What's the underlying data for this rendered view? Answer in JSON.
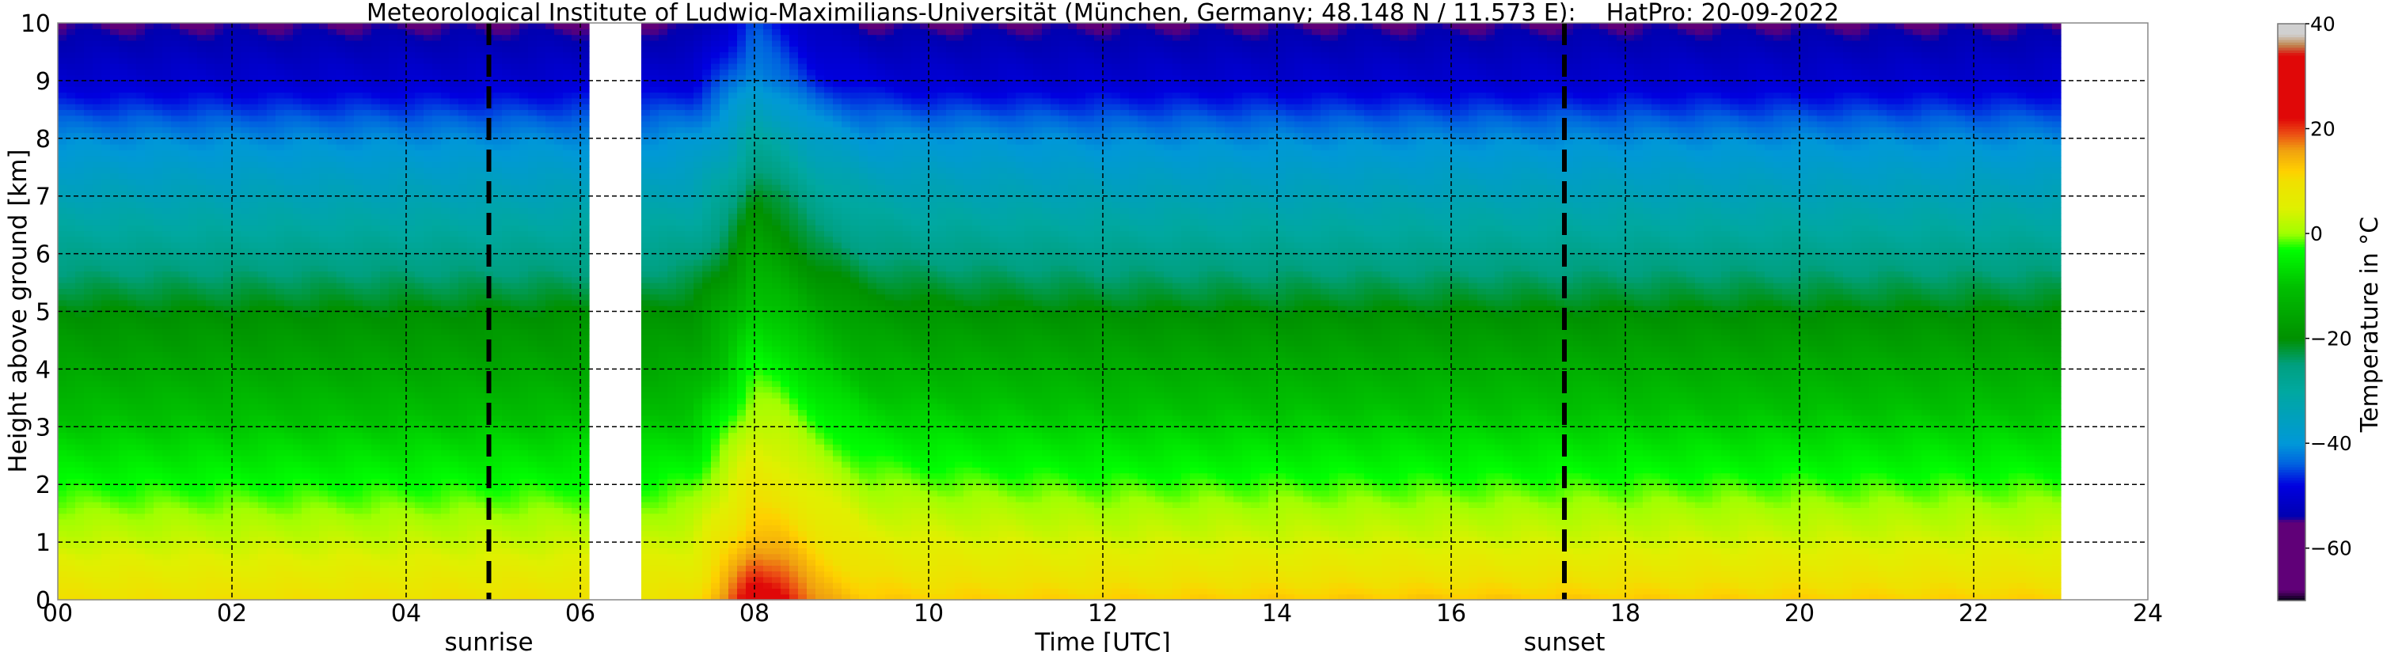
{
  "chart_data": {
    "type": "heatmap",
    "title": "Meteorological Institute of Ludwig-Maximilians-Universität (München, Germany; 48.148 N / 11.573 E):    HatPro: 20-09-2022",
    "xlabel": "Time [UTC]",
    "ylabel": "Height above ground [km]",
    "colorbar_label": "Temperature in °C",
    "xlim": [
      0,
      24
    ],
    "ylim": [
      0,
      10
    ],
    "clim": [
      -70,
      40
    ],
    "grid": true,
    "x_ticks": [
      "00",
      "02",
      "04",
      "06",
      "08",
      "10",
      "12",
      "14",
      "16",
      "18",
      "20",
      "22",
      "24"
    ],
    "y_ticks": [
      "0",
      "1",
      "2",
      "3",
      "4",
      "5",
      "6",
      "7",
      "8",
      "9",
      "10"
    ],
    "colorbar_ticks": [
      "40",
      "20",
      "0",
      "−20",
      "−40",
      "−60"
    ],
    "colorbar_tick_values": [
      40,
      20,
      0,
      -20,
      -40,
      -60
    ],
    "markers": [
      {
        "label": "sunrise",
        "time": 4.95
      },
      {
        "label": "sunset",
        "time": 17.3
      }
    ],
    "missing_intervals": [
      [
        6.1,
        6.65
      ],
      [
        23.0,
        24.0
      ]
    ],
    "heights_km": [
      0,
      1,
      2,
      3,
      4,
      5,
      6,
      7,
      8,
      9,
      10
    ],
    "times_h": [
      0,
      3,
      6.1,
      6.65,
      7.3,
      7.7,
      8.0,
      8.3,
      8.7,
      9.3,
      10,
      12,
      16,
      20,
      23
    ],
    "temperature_c": [
      [
        10,
        3,
        -3,
        -9,
        -15,
        -20,
        -27,
        -34,
        -41,
        -50,
        -55
      ],
      [
        10,
        3,
        -3,
        -9,
        -15,
        -20,
        -27,
        -34,
        -41,
        -50,
        -55
      ],
      [
        10,
        3,
        -3,
        -9,
        -15,
        -20,
        -27,
        -34,
        -41,
        -50,
        -55
      ],
      [
        9,
        3,
        -3,
        -9,
        -15,
        -20,
        -27,
        -34,
        -41,
        -50,
        -55
      ],
      [
        10,
        4,
        -2,
        -8,
        -14,
        -19,
        -26,
        -33,
        -40,
        -49,
        -55
      ],
      [
        18,
        10,
        4,
        -2,
        -8,
        -14,
        -21,
        -28,
        -36,
        -44,
        -50
      ],
      [
        25,
        15,
        8,
        3,
        -3,
        -8,
        -15,
        -20,
        -30,
        -40,
        -45
      ],
      [
        24,
        14,
        7,
        2,
        -4,
        -10,
        -17,
        -23,
        -32,
        -43,
        -48
      ],
      [
        16,
        10,
        4,
        -2,
        -8,
        -14,
        -22,
        -28,
        -37,
        -47,
        -52
      ],
      [
        13,
        6,
        0,
        -6,
        -12,
        -18,
        -25,
        -32,
        -40,
        -49,
        -55
      ],
      [
        12,
        5,
        -1,
        -7,
        -13,
        -19,
        -26,
        -33,
        -40,
        -50,
        -55
      ],
      [
        12,
        4,
        -2,
        -8,
        -14,
        -20,
        -27,
        -34,
        -41,
        -50,
        -55
      ],
      [
        13,
        4,
        -2,
        -8,
        -14,
        -20,
        -27,
        -34,
        -41,
        -50,
        -55
      ],
      [
        12,
        4,
        -2,
        -8,
        -14,
        -20,
        -27,
        -34,
        -41,
        -50,
        -55
      ],
      [
        12,
        4,
        -2,
        -8,
        -14,
        -20,
        -27,
        -34,
        -41,
        -50,
        -55
      ]
    ]
  }
}
